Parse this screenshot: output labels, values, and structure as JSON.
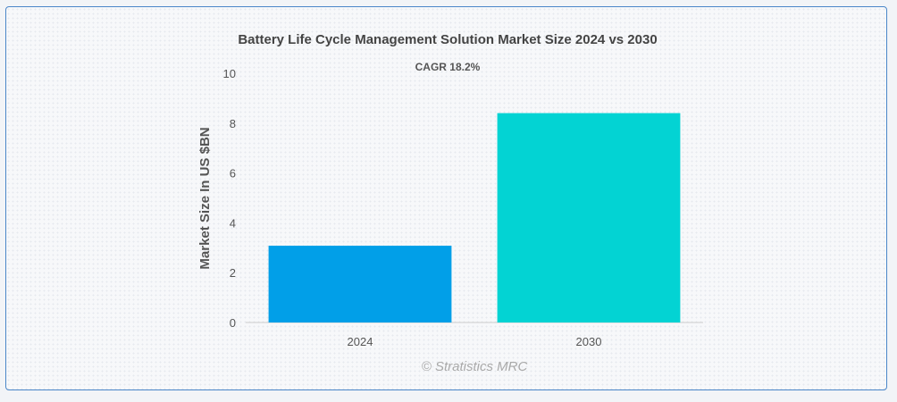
{
  "chart_data": {
    "type": "bar",
    "title": "Battery Life Cycle Management Solution Market Size 2024 vs 2030",
    "subtitle": "CAGR 18.2%",
    "categories": [
      "2024",
      "2030"
    ],
    "values": [
      3.08,
      8.4
    ],
    "colors": [
      "#019fe8",
      "#03d3d3"
    ],
    "ylabel": "Market Size In US $BN",
    "xlabel": "",
    "ylim": [
      0,
      10
    ],
    "yticks": [
      0,
      2,
      4,
      6,
      8,
      10
    ],
    "grid": false,
    "legend": "none"
  },
  "credit": "© Stratistics MRC"
}
